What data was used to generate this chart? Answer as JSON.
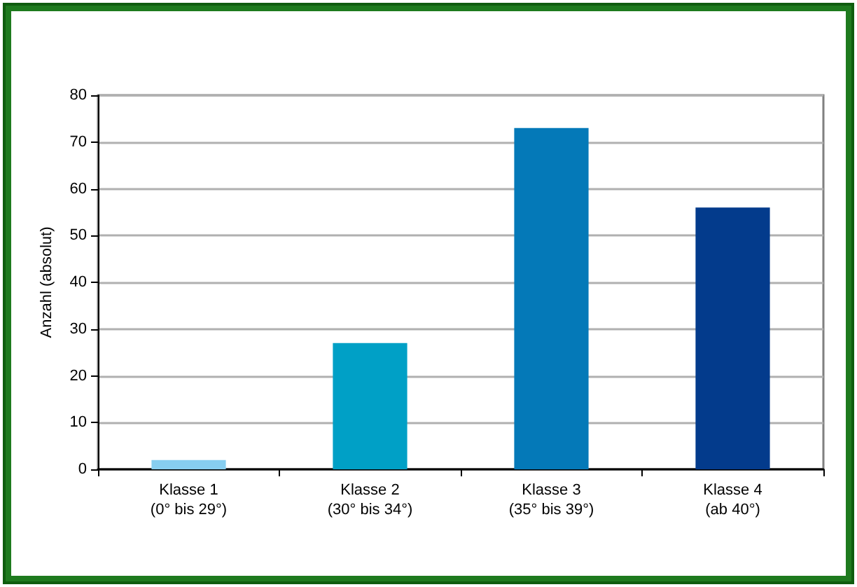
{
  "chart_data": {
    "type": "bar",
    "ylabel": "Anzahl (absolut)",
    "categories": [
      "Klasse 1\n(0° bis 29°)",
      "Klasse 2\n(30° bis 34°)",
      "Klasse 3\n(35° bis 39°)",
      "Klasse 4\n(ab 40°)"
    ],
    "values": [
      2,
      27,
      73,
      56
    ],
    "colors": [
      "#87cef0",
      "#00a0c6",
      "#0479b8",
      "#033b8c"
    ],
    "ylim": [
      0,
      80
    ],
    "yticks": [
      0,
      10,
      20,
      30,
      40,
      50,
      60,
      70,
      80
    ],
    "grid": "y"
  }
}
